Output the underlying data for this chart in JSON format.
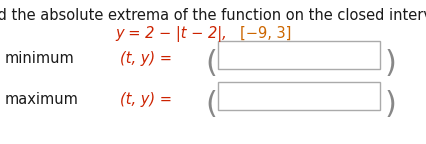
{
  "title": "Find the absolute extrema of the function on the closed interval.",
  "eq_part1": "y = 2 − |t − 2|,",
  "eq_part2": "[−9, 3]",
  "min_label": "minimum",
  "max_label": "maximum",
  "ty_label": "(t, y) =",
  "bg_color": "#ffffff",
  "title_color": "#1a1a1a",
  "eq_color": "#cc2200",
  "interval_color": "#cc6600",
  "label_color": "#1a1a1a",
  "ty_color": "#cc2200",
  "box_edge_color": "#aaaaaa",
  "paren_color": "#888888",
  "title_fontsize": 10.5,
  "body_fontsize": 10.5,
  "paren_fontsize": 22
}
